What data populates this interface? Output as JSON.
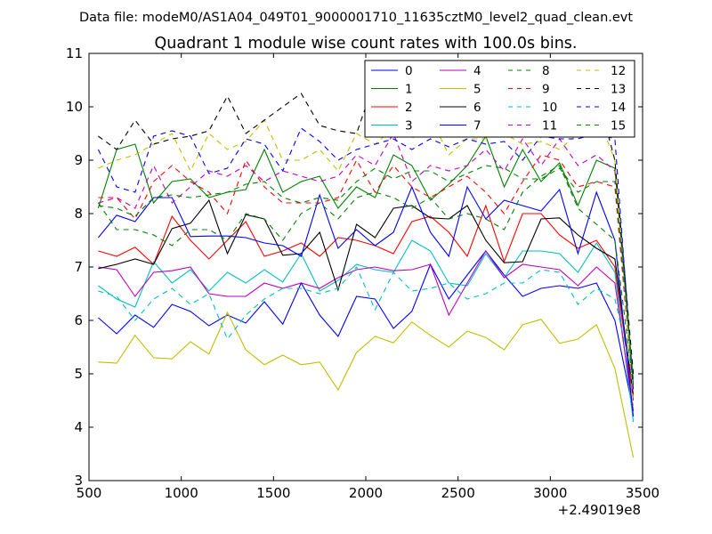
{
  "suptitle": "Data file: modeM0/AS1A04_049T01_9000001710_11635cztM0_level2_quad_clean.evt",
  "chart_data": {
    "type": "line",
    "title": "Quadrant 1 module wise count rates with 100.0s bins.",
    "xlabel": "",
    "ylabel": "",
    "xlim": [
      500,
      3500
    ],
    "ylim": [
      3,
      11
    ],
    "x_offset_label": "+2.49019e8",
    "x_ticks": [
      500,
      1000,
      1500,
      2000,
      2500,
      3000,
      3500
    ],
    "y_ticks": [
      3,
      4,
      5,
      6,
      7,
      8,
      9,
      10,
      11
    ],
    "legend_position": "top-right",
    "x": [
      550,
      650,
      750,
      850,
      950,
      1050,
      1150,
      1250,
      1350,
      1450,
      1550,
      1650,
      1750,
      1850,
      1950,
      2050,
      2150,
      2250,
      2350,
      2450,
      2550,
      2650,
      2750,
      2850,
      2950,
      3050,
      3150,
      3250,
      3350,
      3450
    ],
    "series": [
      {
        "name": "0",
        "color": "#0000ff",
        "dash": "solid",
        "values": [
          6.05,
          5.75,
          6.1,
          5.87,
          6.3,
          6.17,
          5.9,
          6.1,
          5.95,
          6.35,
          5.93,
          6.7,
          6.1,
          5.7,
          6.45,
          6.4,
          5.85,
          6.17,
          7.05,
          6.4,
          6.85,
          7.3,
          6.85,
          6.45,
          6.6,
          6.65,
          6.6,
          6.7,
          6.0,
          4.3
        ]
      },
      {
        "name": "1",
        "color": "#008000",
        "dash": "solid",
        "values": [
          8.1,
          9.2,
          9.3,
          8.2,
          8.6,
          8.65,
          8.3,
          8.4,
          8.45,
          9.2,
          8.4,
          8.6,
          8.7,
          8.1,
          8.5,
          8.3,
          9.1,
          8.9,
          8.25,
          8.55,
          8.9,
          9.45,
          8.5,
          9.2,
          8.6,
          8.95,
          8.15,
          9.0,
          8.85,
          4.8
        ]
      },
      {
        "name": "2",
        "color": "#ff0000",
        "dash": "solid",
        "values": [
          7.3,
          7.2,
          7.37,
          7.05,
          7.95,
          7.5,
          7.15,
          7.5,
          7.85,
          7.2,
          7.3,
          7.45,
          7.2,
          7.55,
          7.5,
          7.4,
          7.25,
          7.85,
          7.95,
          7.65,
          7.2,
          8.15,
          7.1,
          8.0,
          8.0,
          7.6,
          7.35,
          7.5,
          7.0,
          4.5
        ]
      },
      {
        "name": "3",
        "color": "#00bfbf",
        "dash": "solid",
        "values": [
          6.65,
          6.4,
          6.25,
          7.1,
          6.7,
          6.95,
          6.55,
          6.9,
          6.7,
          6.95,
          6.72,
          7.25,
          6.55,
          6.75,
          7.05,
          6.95,
          6.9,
          7.5,
          7.3,
          6.7,
          6.65,
          7.25,
          6.8,
          7.3,
          7.3,
          7.25,
          6.9,
          7.45,
          6.9,
          4.1
        ]
      },
      {
        "name": "4",
        "color": "#bf00bf",
        "dash": "solid",
        "values": [
          7.0,
          6.95,
          6.45,
          6.9,
          6.93,
          7.0,
          6.5,
          6.45,
          6.45,
          6.7,
          6.6,
          6.7,
          6.6,
          6.8,
          6.95,
          7.0,
          6.93,
          6.95,
          7.05,
          6.1,
          6.7,
          7.3,
          6.8,
          7.05,
          7.0,
          6.95,
          6.65,
          7.0,
          6.7,
          4.3
        ]
      },
      {
        "name": "5",
        "color": "#bfbf00",
        "dash": "solid",
        "values": [
          5.22,
          5.2,
          5.72,
          5.3,
          5.28,
          5.6,
          5.37,
          6.15,
          5.45,
          5.17,
          5.35,
          5.17,
          5.22,
          4.7,
          5.4,
          5.7,
          5.58,
          5.97,
          5.72,
          5.5,
          5.8,
          5.68,
          5.45,
          5.92,
          6.02,
          5.57,
          5.65,
          5.92,
          5.1,
          3.43
        ]
      },
      {
        "name": "6",
        "color": "#000000",
        "dash": "solid",
        "values": [
          6.97,
          7.05,
          7.15,
          7.05,
          7.72,
          7.82,
          8.25,
          7.25,
          7.98,
          7.9,
          7.22,
          7.25,
          7.65,
          6.57,
          7.8,
          7.55,
          8.1,
          8.15,
          7.92,
          7.9,
          8.15,
          7.5,
          7.08,
          7.1,
          7.9,
          7.92,
          7.6,
          7.35,
          7.15,
          4.6
        ]
      },
      {
        "name": "7",
        "color": "#0000ff",
        "dash": "solid",
        "values": [
          7.55,
          7.97,
          7.85,
          8.3,
          8.3,
          7.57,
          7.58,
          7.58,
          7.55,
          7.45,
          7.4,
          7.2,
          8.35,
          7.35,
          7.7,
          7.4,
          7.65,
          8.5,
          7.65,
          7.2,
          8.5,
          7.9,
          8.25,
          8.15,
          8.05,
          8.45,
          7.25,
          8.4,
          7.5,
          4.2
        ]
      },
      {
        "name": "8",
        "color": "#008000",
        "dash": "dashed",
        "values": [
          8.2,
          7.7,
          7.7,
          7.6,
          7.4,
          7.7,
          7.7,
          7.5,
          8.0,
          7.9,
          7.5,
          8.0,
          8.2,
          7.9,
          8.3,
          8.4,
          8.3,
          8.1,
          8.3,
          7.9,
          8.0,
          7.9,
          7.7,
          8.4,
          8.7,
          8.9,
          8.1,
          7.8,
          7.5,
          4.8
        ]
      },
      {
        "name": "9",
        "color": "#ff0000",
        "dash": "dashed",
        "values": [
          8.3,
          8.3,
          7.9,
          8.6,
          8.9,
          8.6,
          8.4,
          8.0,
          9.0,
          8.5,
          8.2,
          8.2,
          8.2,
          8.3,
          9.0,
          8.4,
          8.9,
          8.5,
          8.3,
          8.5,
          8.7,
          8.4,
          8.0,
          8.6,
          9.1,
          9.0,
          8.5,
          8.6,
          8.5,
          4.6
        ]
      },
      {
        "name": "10",
        "color": "#00bfbf",
        "dash": "dashed",
        "values": [
          6.55,
          6.45,
          6.0,
          6.4,
          6.6,
          6.3,
          6.5,
          5.65,
          6.1,
          6.4,
          6.6,
          6.6,
          6.5,
          6.6,
          7.0,
          6.2,
          6.9,
          6.55,
          6.6,
          6.7,
          6.4,
          6.5,
          6.7,
          6.7,
          6.95,
          6.9,
          6.3,
          6.6,
          6.4,
          4.9
        ]
      },
      {
        "name": "11",
        "color": "#bf00bf",
        "dash": "dashed",
        "values": [
          8.2,
          8.3,
          8.1,
          8.9,
          8.2,
          8.5,
          8.8,
          8.7,
          8.9,
          8.6,
          8.8,
          8.7,
          8.6,
          8.7,
          9.1,
          8.9,
          9.5,
          8.6,
          8.9,
          8.8,
          8.9,
          9.2,
          8.8,
          9.4,
          8.9,
          9.4,
          8.9,
          9.1,
          8.8,
          4.5
        ]
      },
      {
        "name": "12",
        "color": "#bfbf00",
        "dash": "dashed",
        "values": [
          8.85,
          9.0,
          9.1,
          9.3,
          9.5,
          8.8,
          9.5,
          9.2,
          9.35,
          9.75,
          9.0,
          9.0,
          9.2,
          8.8,
          9.5,
          9.3,
          9.6,
          9.4,
          9.8,
          9.1,
          9.4,
          9.4,
          9.5,
          9.3,
          9.35,
          9.2,
          9.5,
          9.9,
          9.0,
          4.4
        ]
      },
      {
        "name": "13",
        "color": "#000000",
        "dash": "dashed",
        "values": [
          9.45,
          9.2,
          9.75,
          9.3,
          9.4,
          9.45,
          9.55,
          10.2,
          9.5,
          9.75,
          10.0,
          10.25,
          9.65,
          9.55,
          9.5,
          10.5,
          10.3,
          10.5,
          9.9,
          10.2,
          10.3,
          10.4,
          10.2,
          10.2,
          10.3,
          10.1,
          10.1,
          10.3,
          9.0,
          5.0
        ]
      },
      {
        "name": "14",
        "color": "#0000ff",
        "dash": "dashed",
        "values": [
          9.2,
          8.5,
          8.4,
          9.45,
          9.55,
          9.45,
          8.75,
          8.85,
          9.4,
          9.3,
          8.8,
          9.6,
          9.35,
          9.0,
          9.2,
          9.3,
          9.4,
          9.2,
          9.4,
          9.25,
          9.4,
          9.3,
          9.35,
          9.0,
          9.45,
          9.4,
          9.4,
          9.5,
          9.4,
          4.7
        ]
      },
      {
        "name": "15",
        "color": "#008000",
        "dash": "dashed",
        "values": [
          8.15,
          8.1,
          7.95,
          8.3,
          8.35,
          8.3,
          8.35,
          8.4,
          8.55,
          8.6,
          8.3,
          8.2,
          8.3,
          8.25,
          8.6,
          8.85,
          8.65,
          8.8,
          8.8,
          8.6,
          8.75,
          8.9,
          8.85,
          8.65,
          8.65,
          8.85,
          8.4,
          8.6,
          8.6,
          4.9
        ]
      }
    ]
  }
}
